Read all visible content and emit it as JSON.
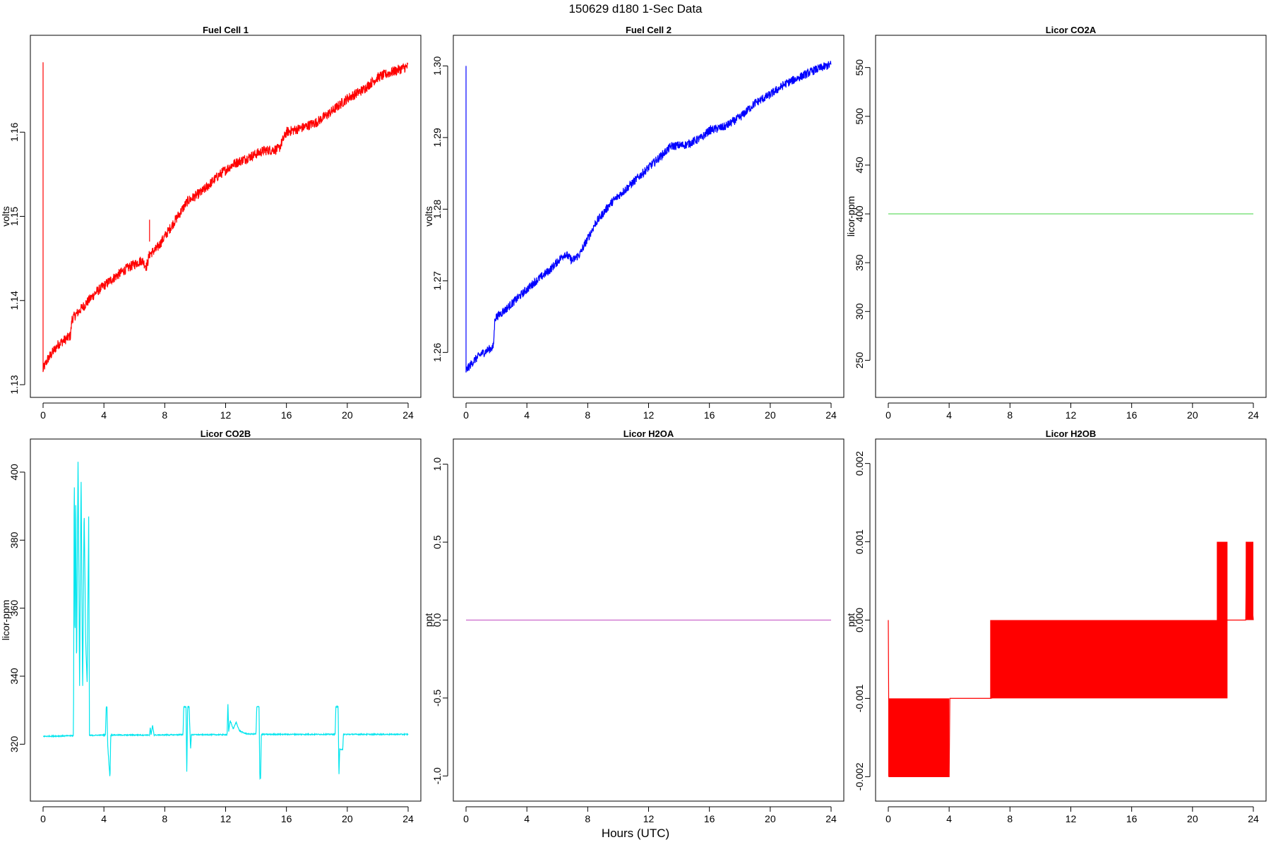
{
  "figure": {
    "title": "150629   d180   1-Sec Data",
    "xlabel": "Hours (UTC)"
  },
  "chart_data": [
    {
      "type": "line",
      "title": "Fuel Cell 1",
      "xlabel": "",
      "ylabel": "volts",
      "color": "#ff0000",
      "xlim": [
        0,
        24
      ],
      "ylim": [
        1.13,
        1.17
      ],
      "xticks": [
        0,
        4,
        8,
        12,
        16,
        20,
        24
      ],
      "yticks": [
        1.13,
        1.14,
        1.15,
        1.16
      ],
      "ytick_labels": [
        "1.13",
        "1.14",
        "1.15",
        "1.16"
      ],
      "noise": 0.0006,
      "spikes": [
        {
          "x": 0.0,
          "from": 1.1315,
          "to": 1.1683
        },
        {
          "x": 7.0,
          "from": 1.147,
          "to": 1.1496
        }
      ],
      "series": [
        {
          "x": [
            0,
            0.3,
            1.0,
            1.8,
            1.9,
            2.5,
            3.5,
            4.5,
            5.5,
            6.5,
            6.8,
            7.0,
            7.5,
            8.5,
            9.5,
            10.5,
            11.5,
            12.5,
            13.5,
            14.5,
            15.5,
            16.0,
            17.0,
            18.0,
            19.0,
            20.0,
            21.0,
            22.0,
            23.0,
            24.0
          ],
          "y": [
            1.1318,
            1.133,
            1.1348,
            1.1358,
            1.1378,
            1.139,
            1.141,
            1.1425,
            1.1438,
            1.1448,
            1.144,
            1.1455,
            1.1462,
            1.149,
            1.1518,
            1.153,
            1.1548,
            1.1562,
            1.157,
            1.1578,
            1.158,
            1.16,
            1.1605,
            1.1612,
            1.1625,
            1.164,
            1.165,
            1.1665,
            1.1672,
            1.1678
          ]
        }
      ]
    },
    {
      "type": "line",
      "title": "Fuel Cell 2",
      "xlabel": "",
      "ylabel": "volts",
      "color": "#0000ff",
      "xlim": [
        0,
        24
      ],
      "ylim": [
        1.2555,
        1.3025
      ],
      "xticks": [
        0,
        4,
        8,
        12,
        16,
        20,
        24
      ],
      "yticks": [
        1.26,
        1.27,
        1.28,
        1.29,
        1.3
      ],
      "ytick_labels": [
        "1.26",
        "1.27",
        "1.28",
        "1.29",
        "1.30"
      ],
      "noise": 0.0006,
      "spikes": [
        {
          "x": 0.0,
          "from": 1.2572,
          "to": 1.3
        }
      ],
      "series": [
        {
          "x": [
            0,
            0.5,
            1.0,
            1.8,
            1.9,
            2.5,
            3.5,
            4.5,
            5.5,
            6.5,
            7.0,
            7.5,
            8.5,
            9.5,
            10.5,
            11.5,
            12.5,
            13.5,
            14.5,
            15.5,
            16.0,
            17.0,
            18.0,
            19.0,
            20.0,
            21.0,
            22.0,
            23.0,
            24.0
          ],
          "y": [
            1.2575,
            1.2588,
            1.2598,
            1.2608,
            1.2648,
            1.2658,
            1.2678,
            1.2698,
            1.2715,
            1.2738,
            1.2728,
            1.2738,
            1.278,
            1.2808,
            1.2828,
            1.2848,
            1.2868,
            1.2888,
            1.289,
            1.29,
            1.291,
            1.2915,
            1.2928,
            1.2948,
            1.296,
            1.2975,
            1.2985,
            1.2995,
            1.3002
          ]
        }
      ]
    },
    {
      "type": "line",
      "title": "Licor CO2A",
      "xlabel": "",
      "ylabel": "licor-ppm",
      "color": "#66dd66",
      "xlim": [
        0,
        24
      ],
      "ylim": [
        225,
        570
      ],
      "xticks": [
        0,
        4,
        8,
        12,
        16,
        20,
        24
      ],
      "yticks": [
        250,
        300,
        350,
        400,
        450,
        500,
        550
      ],
      "ytick_labels": [
        "250",
        "300",
        "350",
        "400",
        "450",
        "500",
        "550"
      ],
      "noise": 0,
      "spikes": [],
      "series": [
        {
          "x": [
            0,
            24
          ],
          "y": [
            400,
            400
          ]
        }
      ]
    },
    {
      "type": "line",
      "title": "Licor CO2B",
      "xlabel": "",
      "ylabel": "licor-ppm",
      "color": "#00e5ee",
      "xlim": [
        0,
        24
      ],
      "ylim": [
        307,
        406
      ],
      "xticks": [
        0,
        4,
        8,
        12,
        16,
        20,
        24
      ],
      "yticks": [
        320,
        340,
        360,
        380,
        400
      ],
      "ytick_labels": [
        "320",
        "340",
        "360",
        "380",
        "400"
      ],
      "noise": 0.15,
      "spikes": [],
      "series": [
        {
          "x": [
            0,
            2.0,
            2.05,
            2.1,
            2.15,
            2.2,
            2.3,
            2.4,
            2.5,
            2.6,
            2.7,
            2.8,
            2.9,
            3.0,
            3.05,
            3.1,
            4.1,
            4.15,
            4.2,
            4.25,
            4.4,
            4.45,
            7.0,
            7.05,
            7.1,
            7.2,
            7.3,
            9.2,
            9.25,
            9.4,
            9.45,
            9.5,
            9.6,
            9.7,
            9.75,
            12.1,
            12.15,
            12.2,
            12.3,
            12.5,
            12.7,
            12.9,
            13.2,
            13.5,
            14.0,
            14.05,
            14.2,
            14.25,
            14.3,
            14.35,
            19.2,
            19.25,
            19.4,
            19.45,
            19.5,
            19.7,
            19.75,
            24
          ],
          "y": [
            322.3,
            322.5,
            404.0,
            345.0,
            398.0,
            340.0,
            405.0,
            337.0,
            399.0,
            334.0,
            390.0,
            350.0,
            338.0,
            387.0,
            322.5,
            322.6,
            322.7,
            331.0,
            331.0,
            319.5,
            310.0,
            322.7,
            322.7,
            325.0,
            322.7,
            325.5,
            322.7,
            322.8,
            331.0,
            331.0,
            310.0,
            331.0,
            331.0,
            318.5,
            322.8,
            322.8,
            332.5,
            323.5,
            327.0,
            324.5,
            326.5,
            324.0,
            323.3,
            323.0,
            323.0,
            331.0,
            331.0,
            310.0,
            310.0,
            322.9,
            322.9,
            331.0,
            331.0,
            310.0,
            318.5,
            318.5,
            322.9,
            322.9
          ]
        }
      ]
    },
    {
      "type": "line",
      "title": "Licor H2OA",
      "xlabel": "",
      "ylabel": "ppt",
      "color": "#cc66cc",
      "xlim": [
        0,
        24
      ],
      "ylim": [
        -1.08,
        1.08
      ],
      "xticks": [
        0,
        4,
        8,
        12,
        16,
        20,
        24
      ],
      "yticks": [
        -1.0,
        -0.5,
        0.0,
        0.5,
        1.0
      ],
      "ytick_labels": [
        "-1.0",
        "-0.5",
        "0.0",
        "0.5",
        "1.0"
      ],
      "noise": 0,
      "spikes": [],
      "series": [
        {
          "x": [
            0,
            24
          ],
          "y": [
            0,
            0
          ]
        }
      ]
    },
    {
      "type": "line",
      "title": "Licor H2OB",
      "xlabel": "",
      "ylabel": "ppt",
      "color": "#ff0000",
      "xlim": [
        0,
        24
      ],
      "ylim": [
        -0.00215,
        0.00215
      ],
      "xticks": [
        0,
        4,
        8,
        12,
        16,
        20,
        24
      ],
      "yticks": [
        -0.002,
        -0.001,
        0.0,
        0.001,
        0.002
      ],
      "ytick_labels": [
        "-0.002",
        "-0.001",
        "0.000",
        "0.001",
        "0.002"
      ],
      "noise": 0,
      "spikes": [],
      "blocks": [
        {
          "x0": 0.0,
          "x1": 4.0,
          "y0": -0.002,
          "y1": -0.001
        },
        {
          "x0": 6.7,
          "x1": 22.3,
          "y0": -0.001,
          "y1": 0.0
        },
        {
          "x0": 21.6,
          "x1": 22.3,
          "y0": 0.0,
          "y1": 0.001
        },
        {
          "x0": 23.5,
          "x1": 24.0,
          "y0": 0.0,
          "y1": 0.001
        }
      ],
      "series": [
        {
          "x": [
            0.0,
            0.05,
            4.0,
            4.05,
            6.7,
            6.75,
            22.3,
            22.35,
            23.5,
            23.55,
            24.0
          ],
          "y": [
            0.0,
            -0.002,
            -0.002,
            -0.001,
            -0.001,
            -0.001,
            0.0,
            0.0,
            0.0,
            0.001,
            0.0
          ]
        }
      ]
    }
  ]
}
